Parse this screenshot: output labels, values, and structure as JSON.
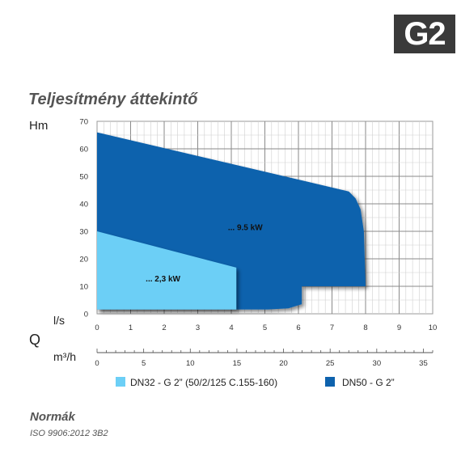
{
  "badge": "G2",
  "title": "Teljesítmény áttekintő",
  "norms": {
    "heading": "Normák",
    "text": "ISO 9906:2012 3B2"
  },
  "chart_data": {
    "type": "area",
    "title": "Teljesítmény áttekintő",
    "ylabel": "Hm",
    "xlabel_symbol": "Q",
    "x_unit_ls": "l/s",
    "x_unit_m3h": "m³/h",
    "ylim": [
      0,
      70
    ],
    "xlim_ls": [
      0,
      10
    ],
    "xlim_m3h": [
      0,
      36
    ],
    "y_ticks": [
      0,
      10,
      20,
      30,
      40,
      50,
      60,
      70
    ],
    "x_ticks_ls": [
      0,
      1,
      2,
      3,
      4,
      5,
      6,
      7,
      8,
      9,
      10
    ],
    "x_ticks_m3h": [
      0,
      5,
      10,
      15,
      20,
      25,
      30,
      35
    ],
    "grid": true,
    "series": [
      {
        "name": "DN50 - G 2”",
        "label": "... 9.5 kW",
        "color": "#0e62ad",
        "outline": [
          [
            0,
            66
          ],
          [
            7.5,
            44.5
          ],
          [
            7.7,
            42
          ],
          [
            7.85,
            38
          ],
          [
            7.95,
            30
          ],
          [
            8.0,
            10
          ],
          [
            6.1,
            10
          ],
          [
            6.1,
            3.5
          ],
          [
            5.7,
            2
          ],
          [
            5.1,
            1.6
          ],
          [
            0,
            1.6
          ]
        ]
      },
      {
        "name": "DN32 - G 2” (50/2/125 C.155-160)",
        "label": "... 2,3 kW",
        "color": "#6ccff6",
        "outline": [
          [
            0,
            30
          ],
          [
            4.15,
            16.8
          ],
          [
            4.15,
            1.6
          ],
          [
            0,
            1.6
          ]
        ]
      }
    ],
    "legend": [
      {
        "name": "DN32 - G 2” (50/2/125 C.155-160)",
        "color": "#6ccff6"
      },
      {
        "name": "DN50 - G 2”",
        "color": "#0e62ad"
      }
    ]
  }
}
